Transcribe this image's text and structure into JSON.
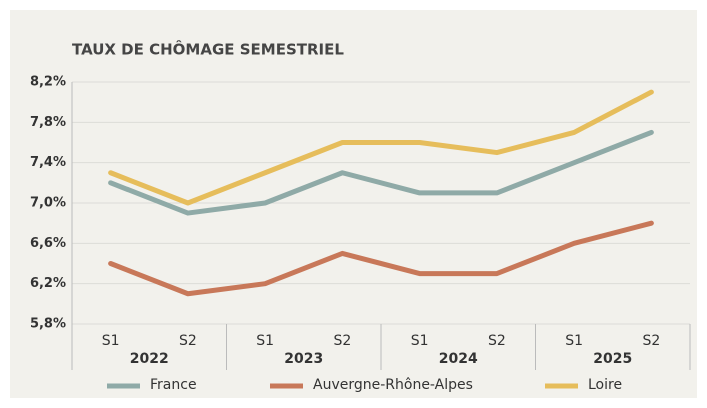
{
  "chart_data": {
    "type": "line",
    "title": "TAUX DE CHÔMAGE SEMESTRIEL",
    "categories": [
      "S1",
      "S2",
      "S1",
      "S2",
      "S1",
      "S2",
      "S1",
      "S2"
    ],
    "groups": [
      "2022",
      "2023",
      "2024",
      "2025"
    ],
    "series": [
      {
        "name": "France",
        "color": "#8faaa7",
        "values": [
          7.2,
          6.9,
          7.0,
          7.3,
          7.1,
          7.1,
          7.4,
          7.7
        ]
      },
      {
        "name": "Auvergne-Rhône-Alpes",
        "color": "#c87859",
        "values": [
          6.4,
          6.1,
          6.2,
          6.5,
          6.3,
          6.3,
          6.6,
          6.8
        ]
      },
      {
        "name": "Loire",
        "color": "#e6bd5b",
        "values": [
          7.3,
          7.0,
          7.3,
          7.6,
          7.6,
          7.5,
          7.7,
          8.1
        ]
      }
    ],
    "ylim": [
      5.8,
      8.2
    ],
    "yticks": [
      {
        "value": 5.8,
        "label": "5,8%"
      },
      {
        "value": 6.2,
        "label": "6,2%"
      },
      {
        "value": 6.6,
        "label": "6,6%"
      },
      {
        "value": 7.0,
        "label": "7,0%"
      },
      {
        "value": 7.4,
        "label": "7,4%"
      },
      {
        "value": 7.8,
        "label": "7,8%"
      },
      {
        "value": 8.2,
        "label": "8,2%"
      }
    ],
    "grid": true
  }
}
